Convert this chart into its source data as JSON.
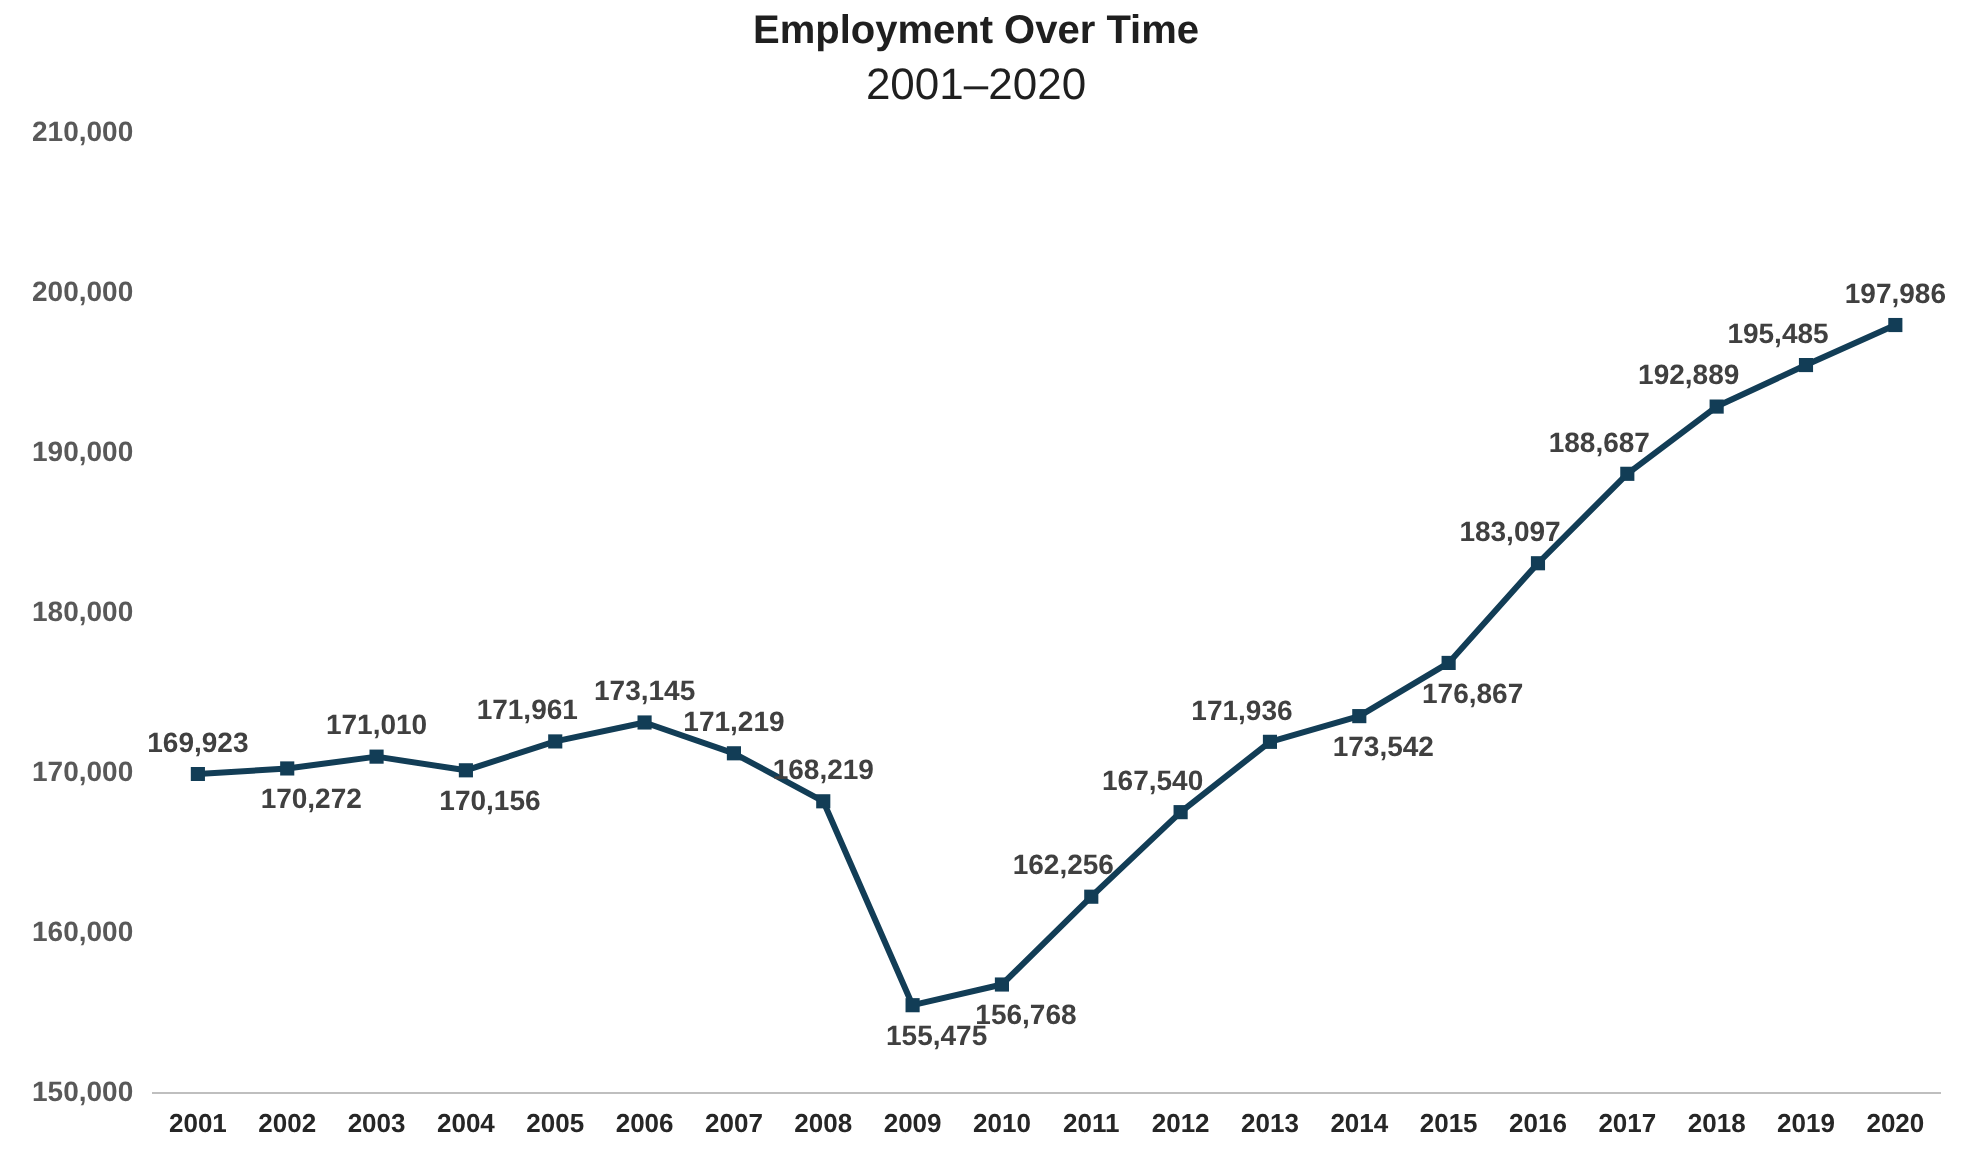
{
  "chart_data": {
    "type": "line",
    "title": "Employment Over Time",
    "subtitle": "2001–2020",
    "categories": [
      "2001",
      "2002",
      "2003",
      "2004",
      "2005",
      "2006",
      "2007",
      "2008",
      "2009",
      "2010",
      "2011",
      "2012",
      "2013",
      "2014",
      "2015",
      "2016",
      "2017",
      "2018",
      "2019",
      "2020"
    ],
    "series": [
      {
        "color": "#123d56",
        "values": [
          169923,
          170272,
          171010,
          170156,
          171961,
          173145,
          171219,
          168219,
          155475,
          156768,
          162256,
          167540,
          171936,
          173542,
          176867,
          183097,
          188687,
          192889,
          195485,
          197986
        ],
        "value_labels": [
          "169,923",
          "170,272",
          "171,010",
          "170,156",
          "171,961",
          "173,145",
          "171,219",
          "168,219",
          "155,475",
          "156,768",
          "162,256",
          "167,540",
          "171,936",
          "173,542",
          "176,867",
          "183,097",
          "188,687",
          "192,889",
          "195,485",
          "197,986"
        ]
      }
    ],
    "ylim": [
      150000,
      210000
    ],
    "yticks": [
      {
        "value": 150000,
        "label": "150,000"
      },
      {
        "value": 160000,
        "label": "160,000"
      },
      {
        "value": 170000,
        "label": "170,000"
      },
      {
        "value": 180000,
        "label": "180,000"
      },
      {
        "value": 190000,
        "label": "190,000"
      },
      {
        "value": 200000,
        "label": "200,000"
      },
      {
        "value": 210000,
        "label": "210,000"
      }
    ],
    "grid": false,
    "legend": false,
    "marker": "square",
    "line_style": "solid"
  }
}
